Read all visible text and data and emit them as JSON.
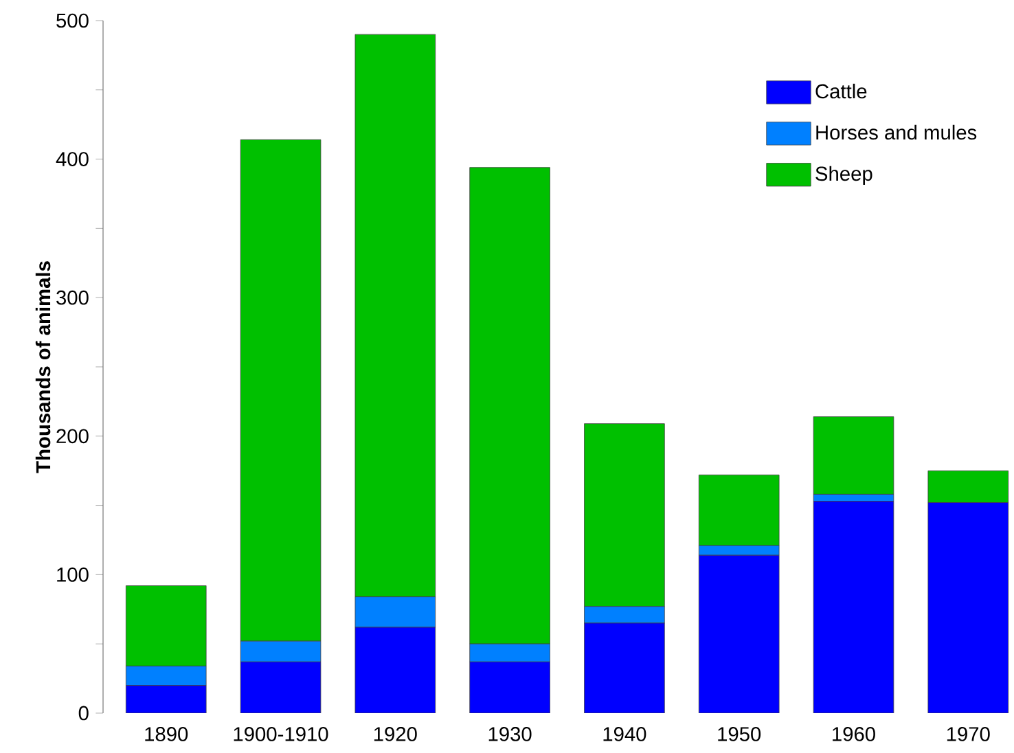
{
  "chart_data": {
    "type": "bar",
    "stacked": true,
    "ylabel": "Thousands of animals",
    "categories": [
      "1890",
      "1900-1910",
      "1920",
      "1930",
      "1940",
      "1950",
      "1960",
      "1970"
    ],
    "series": [
      {
        "name": "Cattle",
        "color": "#0000ff",
        "values": [
          20,
          37,
          62,
          37,
          65,
          114,
          153,
          152
        ]
      },
      {
        "name": "Horses and mules",
        "color": "#0080ff",
        "values": [
          14,
          15,
          22,
          13,
          12,
          7,
          5,
          0
        ]
      },
      {
        "name": "Sheep",
        "color": "#00c000",
        "values": [
          58,
          362,
          406,
          344,
          132,
          51,
          56,
          23
        ]
      }
    ],
    "ylim": [
      0,
      500
    ],
    "yticks": [
      0,
      {
        "value": 50,
        "label": null
      },
      100,
      {
        "value": 150,
        "label": null
      },
      200,
      {
        "value": 250,
        "label": null
      },
      300,
      {
        "value": 350,
        "label": null
      },
      400,
      {
        "value": 450,
        "label": null
      },
      500
    ],
    "grid": false,
    "legend": "top right"
  }
}
